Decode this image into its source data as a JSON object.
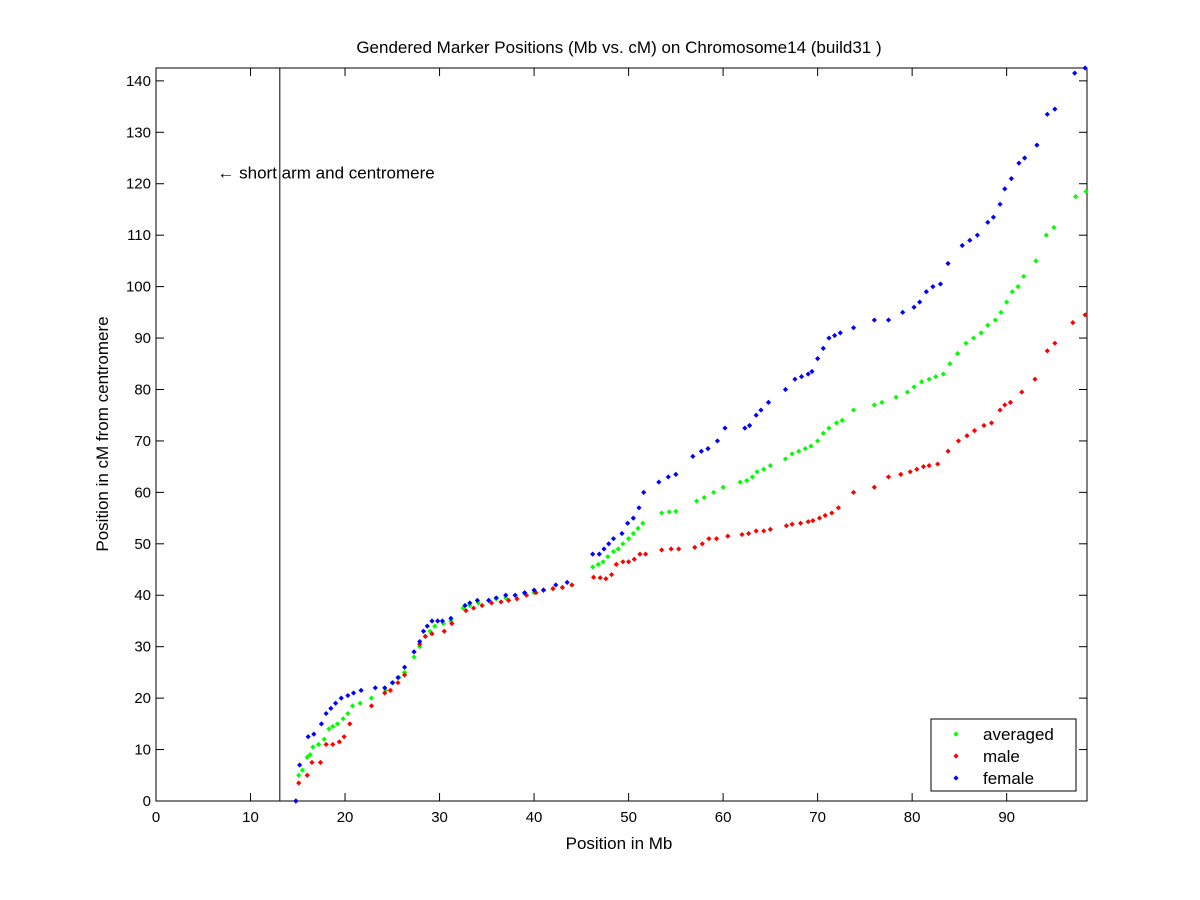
{
  "chart_data": {
    "type": "scatter",
    "title": "Gendered Marker Positions (Mb vs. cM) on Chromosome14 (build31 )",
    "xlabel": "Position in Mb",
    "ylabel": "Position in cM from centromere",
    "xlim": [
      0,
      98.5
    ],
    "ylim": [
      0,
      142.5
    ],
    "xticks": [
      0,
      10,
      20,
      30,
      40,
      50,
      60,
      70,
      80,
      90
    ],
    "yticks": [
      0,
      10,
      20,
      30,
      40,
      50,
      60,
      70,
      80,
      90,
      100,
      110,
      120,
      130,
      140
    ],
    "grid": false,
    "legend_position": "bottom-right",
    "annotation": {
      "text": "← short arm and centromere",
      "x": 6.5,
      "y": 122,
      "centromere_line_x": 13.1
    },
    "series": [
      {
        "name": "averaged",
        "color": "#00ff00",
        "points": [
          [
            14.8,
            0
          ],
          [
            15.1,
            5
          ],
          [
            15.5,
            6
          ],
          [
            16,
            8.5
          ],
          [
            16.3,
            9
          ],
          [
            16.6,
            10.5
          ],
          [
            17.2,
            11
          ],
          [
            17.8,
            12
          ],
          [
            18.3,
            14
          ],
          [
            18.7,
            14.5
          ],
          [
            19.2,
            15
          ],
          [
            19.8,
            16
          ],
          [
            20.3,
            17
          ],
          [
            20.8,
            18.5
          ],
          [
            21.6,
            19
          ],
          [
            22.8,
            20
          ],
          [
            24.3,
            21.5
          ],
          [
            25.1,
            23
          ],
          [
            25.7,
            24
          ],
          [
            26.3,
            25
          ],
          [
            27.3,
            28
          ],
          [
            27.9,
            30
          ],
          [
            28.5,
            32
          ],
          [
            29,
            33
          ],
          [
            29.5,
            34
          ],
          [
            30.4,
            34.5
          ],
          [
            31.2,
            35
          ],
          [
            32.5,
            37.5
          ],
          [
            33.2,
            38
          ],
          [
            34.1,
            38.5
          ],
          [
            35.2,
            39
          ],
          [
            36,
            39.3
          ],
          [
            37,
            39.5
          ],
          [
            38,
            40
          ],
          [
            39,
            40.3
          ],
          [
            40,
            40.5
          ],
          [
            41,
            41
          ],
          [
            42,
            41.2
          ],
          [
            43,
            41.5
          ],
          [
            44,
            42
          ],
          [
            46.2,
            45.5
          ],
          [
            46.8,
            46
          ],
          [
            47.3,
            46.5
          ],
          [
            47.8,
            47.5
          ],
          [
            48.4,
            48.5
          ],
          [
            48.9,
            49
          ],
          [
            49.4,
            50
          ],
          [
            50,
            51
          ],
          [
            50.5,
            52
          ],
          [
            51,
            53
          ],
          [
            51.5,
            54
          ],
          [
            53.5,
            56
          ],
          [
            54.3,
            56.2
          ],
          [
            55,
            56.3
          ],
          [
            57.2,
            58.3
          ],
          [
            58,
            59
          ],
          [
            59,
            60
          ],
          [
            60,
            61
          ],
          [
            61.8,
            62
          ],
          [
            62.5,
            62.3
          ],
          [
            63.1,
            63
          ],
          [
            63.6,
            64
          ],
          [
            64.3,
            64.5
          ],
          [
            65,
            65.2
          ],
          [
            66.6,
            66.5
          ],
          [
            67.3,
            67.5
          ],
          [
            68,
            68
          ],
          [
            68.7,
            68.5
          ],
          [
            69.3,
            69
          ],
          [
            70,
            70
          ],
          [
            70.6,
            71.5
          ],
          [
            71.2,
            72.5
          ],
          [
            72,
            73.5
          ],
          [
            72.6,
            74
          ],
          [
            73.8,
            76
          ],
          [
            76,
            77
          ],
          [
            76.8,
            77.5
          ],
          [
            78.3,
            78.5
          ],
          [
            79.5,
            79.5
          ],
          [
            80.2,
            80.5
          ],
          [
            81,
            81.5
          ],
          [
            81.8,
            82
          ],
          [
            82.5,
            82.5
          ],
          [
            83.3,
            83
          ],
          [
            84,
            85
          ],
          [
            84.8,
            87
          ],
          [
            85.7,
            89
          ],
          [
            86.5,
            90
          ],
          [
            87.3,
            91
          ],
          [
            88,
            92.5
          ],
          [
            88.8,
            93.5
          ],
          [
            89.4,
            95
          ],
          [
            90,
            97
          ],
          [
            90.6,
            99
          ],
          [
            91.2,
            100
          ],
          [
            91.8,
            102
          ],
          [
            93.1,
            105
          ],
          [
            94.2,
            110
          ],
          [
            95,
            111.5
          ],
          [
            97.3,
            117.5
          ],
          [
            98.4,
            118.5
          ]
        ]
      },
      {
        "name": "male",
        "color": "#ff0000",
        "points": [
          [
            14.8,
            0
          ],
          [
            15.1,
            3.5
          ],
          [
            16,
            5
          ],
          [
            16.5,
            7.5
          ],
          [
            17.4,
            7.5
          ],
          [
            18,
            11
          ],
          [
            18.7,
            11
          ],
          [
            19.4,
            11.5
          ],
          [
            19.9,
            12.5
          ],
          [
            20.5,
            15
          ],
          [
            22.8,
            18.5
          ],
          [
            24.2,
            21
          ],
          [
            24.8,
            21.5
          ],
          [
            25.6,
            23
          ],
          [
            26.3,
            24.5
          ],
          [
            27.3,
            29
          ],
          [
            27.9,
            30.5
          ],
          [
            28.5,
            32
          ],
          [
            29.2,
            32.5
          ],
          [
            30.5,
            33
          ],
          [
            31.3,
            34.5
          ],
          [
            32.8,
            37
          ],
          [
            33.6,
            37.5
          ],
          [
            34.5,
            38
          ],
          [
            35.5,
            38.5
          ],
          [
            36.5,
            38.7
          ],
          [
            37.3,
            39
          ],
          [
            38.2,
            39.3
          ],
          [
            39.2,
            40
          ],
          [
            40.2,
            40.5
          ],
          [
            41,
            41
          ],
          [
            42,
            41.3
          ],
          [
            43,
            41.5
          ],
          [
            44,
            42
          ],
          [
            46.3,
            43.5
          ],
          [
            47,
            43.4
          ],
          [
            47.6,
            43.2
          ],
          [
            48.2,
            44
          ],
          [
            48.7,
            46
          ],
          [
            49.4,
            46.5
          ],
          [
            50,
            46.5
          ],
          [
            50.6,
            47
          ],
          [
            51.2,
            48
          ],
          [
            51.8,
            48
          ],
          [
            53.5,
            48.8
          ],
          [
            54.5,
            49
          ],
          [
            55.3,
            49
          ],
          [
            57,
            49.3
          ],
          [
            57.8,
            50
          ],
          [
            58.5,
            51
          ],
          [
            59.3,
            51
          ],
          [
            60.5,
            51.5
          ],
          [
            62,
            51.8
          ],
          [
            62.7,
            52
          ],
          [
            63.5,
            52.5
          ],
          [
            64.3,
            52.5
          ],
          [
            65,
            52.8
          ],
          [
            66.7,
            53.5
          ],
          [
            67.3,
            53.8
          ],
          [
            68.2,
            54
          ],
          [
            69,
            54.3
          ],
          [
            69.5,
            54.5
          ],
          [
            70.2,
            55
          ],
          [
            70.8,
            55.5
          ],
          [
            71.5,
            56
          ],
          [
            72.2,
            57
          ],
          [
            73.8,
            60
          ],
          [
            76,
            61
          ],
          [
            77.5,
            63
          ],
          [
            78.8,
            63.5
          ],
          [
            79.8,
            64
          ],
          [
            80.5,
            64.5
          ],
          [
            81.2,
            65
          ],
          [
            81.8,
            65.2
          ],
          [
            82.7,
            65.5
          ],
          [
            83.8,
            68
          ],
          [
            84.9,
            70
          ],
          [
            85.8,
            71
          ],
          [
            86.6,
            72
          ],
          [
            87.6,
            73
          ],
          [
            88.4,
            73.5
          ],
          [
            89.3,
            76
          ],
          [
            89.8,
            77
          ],
          [
            90.4,
            77.5
          ],
          [
            91.6,
            79.5
          ],
          [
            93,
            82
          ],
          [
            94.3,
            87.5
          ],
          [
            95.1,
            89
          ],
          [
            97,
            93
          ],
          [
            98.3,
            94.5
          ]
        ]
      },
      {
        "name": "female",
        "color": "#0000ff",
        "points": [
          [
            14.8,
            0
          ],
          [
            15.2,
            7
          ],
          [
            16.1,
            12.5
          ],
          [
            16.7,
            13
          ],
          [
            17.5,
            15
          ],
          [
            18,
            17
          ],
          [
            18.5,
            18
          ],
          [
            19,
            19
          ],
          [
            19.6,
            20
          ],
          [
            20.3,
            20.5
          ],
          [
            20.9,
            21
          ],
          [
            21.7,
            21.5
          ],
          [
            23.2,
            22
          ],
          [
            24.2,
            22
          ],
          [
            25,
            23
          ],
          [
            25.6,
            24
          ],
          [
            26.3,
            26
          ],
          [
            27.3,
            29
          ],
          [
            27.9,
            31
          ],
          [
            28.3,
            33
          ],
          [
            28.7,
            34
          ],
          [
            29.2,
            35
          ],
          [
            29.8,
            35
          ],
          [
            30.3,
            35
          ],
          [
            31.2,
            35.5
          ],
          [
            32.7,
            38
          ],
          [
            33.2,
            38.5
          ],
          [
            34,
            39
          ],
          [
            35.2,
            39
          ],
          [
            36,
            39.5
          ],
          [
            37,
            40
          ],
          [
            38,
            40
          ],
          [
            39,
            40.5
          ],
          [
            40,
            41
          ],
          [
            41,
            41
          ],
          [
            42.3,
            42
          ],
          [
            43.5,
            42.5
          ],
          [
            46.2,
            48
          ],
          [
            46.9,
            48
          ],
          [
            47.4,
            49
          ],
          [
            47.9,
            50
          ],
          [
            48.4,
            51
          ],
          [
            49.3,
            52
          ],
          [
            49.9,
            54
          ],
          [
            50.5,
            55
          ],
          [
            51.1,
            57
          ],
          [
            51.6,
            60
          ],
          [
            53.2,
            62
          ],
          [
            54.2,
            63
          ],
          [
            55,
            63.5
          ],
          [
            56.8,
            67
          ],
          [
            57.7,
            68
          ],
          [
            58.4,
            68.5
          ],
          [
            59.4,
            70
          ],
          [
            60.2,
            72.5
          ],
          [
            62.3,
            72.5
          ],
          [
            62.8,
            73
          ],
          [
            63.5,
            75
          ],
          [
            64,
            76
          ],
          [
            64.8,
            77.5
          ],
          [
            66.6,
            80
          ],
          [
            67.6,
            82
          ],
          [
            68.3,
            82.5
          ],
          [
            69,
            83
          ],
          [
            69.4,
            83.5
          ],
          [
            70,
            86
          ],
          [
            70.6,
            88
          ],
          [
            71.2,
            90
          ],
          [
            71.8,
            90.5
          ],
          [
            72.4,
            91
          ],
          [
            73.8,
            92
          ],
          [
            76,
            93.5
          ],
          [
            77.5,
            93.5
          ],
          [
            79,
            95
          ],
          [
            80.2,
            96
          ],
          [
            80.8,
            97
          ],
          [
            81.5,
            99
          ],
          [
            82.2,
            100
          ],
          [
            83,
            100.5
          ],
          [
            83.8,
            104.5
          ],
          [
            85.3,
            108
          ],
          [
            86.1,
            109
          ],
          [
            86.9,
            110
          ],
          [
            88,
            112.5
          ],
          [
            88.6,
            113.5
          ],
          [
            89.3,
            116
          ],
          [
            89.8,
            119
          ],
          [
            90.5,
            121
          ],
          [
            91.3,
            124
          ],
          [
            91.9,
            125
          ],
          [
            93.2,
            127.5
          ],
          [
            94.3,
            133.5
          ],
          [
            95.1,
            134.5
          ],
          [
            97.2,
            141.5
          ],
          [
            98.3,
            142.5
          ]
        ]
      }
    ]
  }
}
